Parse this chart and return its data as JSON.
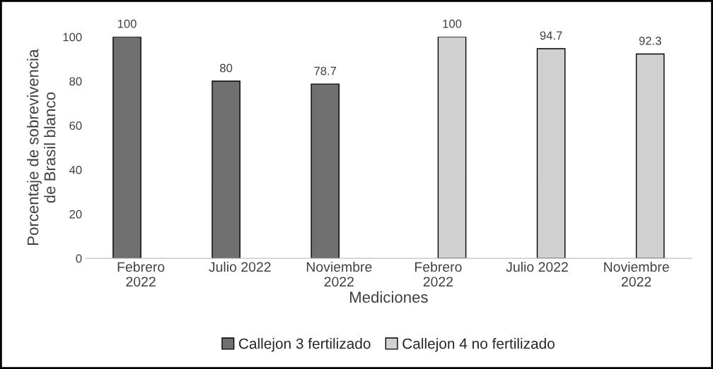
{
  "chart_data": {
    "type": "bar",
    "xlabel": "Mediciones",
    "ylabel": "Porcentaje de sobrevivencia\nde Brasil blanco",
    "categories": [
      "Febrero\n2022",
      "Julio 2022",
      "Noviembre\n2022",
      "Febrero\n2022",
      "Julio 2022",
      "Noviembre\n2022"
    ],
    "series": [
      {
        "name": "Callejon 3 fertilizado",
        "color": "#707070",
        "values": [
          100,
          80,
          78.7,
          null,
          null,
          null
        ]
      },
      {
        "name": "Callejon 4 no fertilizado",
        "color": "#d0d0d0",
        "values": [
          null,
          null,
          null,
          100,
          94.7,
          92.3
        ]
      }
    ],
    "ylim": [
      0,
      100
    ],
    "yticks": [
      0,
      20,
      40,
      60,
      80,
      100
    ],
    "grid": false,
    "legend": "bottom",
    "data_labels": true
  }
}
